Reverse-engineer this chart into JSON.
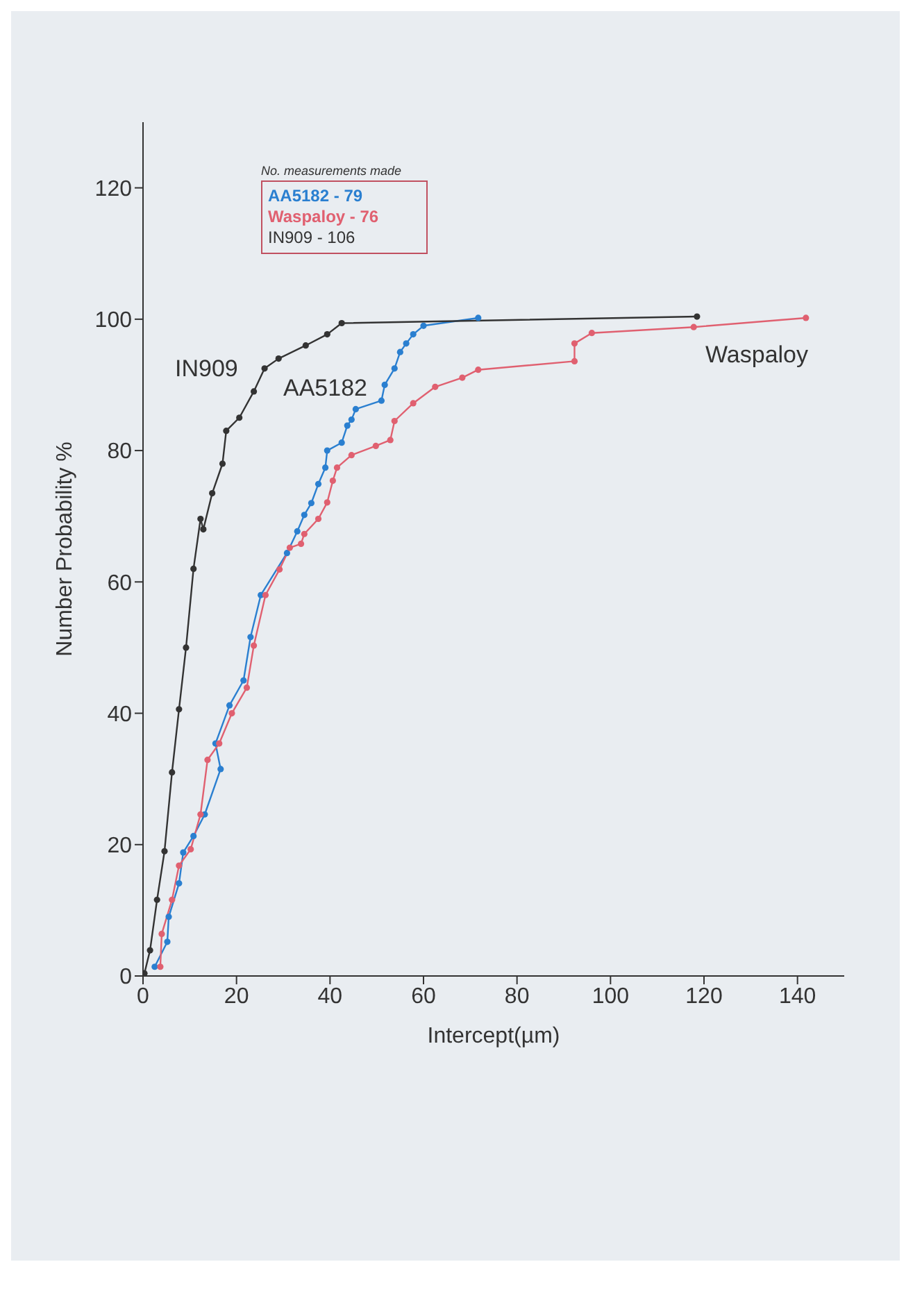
{
  "chart_data": {
    "type": "line",
    "xlabel": "Intercept(µm)",
    "ylabel": "Number Probability  %",
    "xlim": [
      0,
      150
    ],
    "xticks": [
      0,
      20,
      40,
      60,
      80,
      100,
      120,
      140
    ],
    "ylim": [
      0,
      130
    ],
    "yticks": [
      0,
      20,
      40,
      60,
      80,
      100,
      120
    ],
    "legend": "top left",
    "legend_title": "No. measurements made",
    "marker": "circle",
    "line_style": "solid",
    "series": [
      {
        "name": "AA5182 - 79",
        "color": "#2a7fd0",
        "x": [
          2.5,
          5.2,
          5.5,
          7.7,
          8.6,
          10.8,
          13.2,
          16.6,
          15.5,
          18.5,
          21.5,
          23,
          25.2,
          30.8,
          33,
          34.5,
          36,
          37.5,
          39,
          39.4,
          42.5,
          43.7,
          44.6,
          45.5,
          51,
          51.7,
          53.8,
          55,
          56.3,
          57.8,
          60,
          71.7
        ],
        "values": [
          1.4,
          5.2,
          9,
          14.1,
          18.8,
          21.3,
          24.6,
          31.5,
          35.4,
          41.2,
          45,
          51.6,
          58,
          64.4,
          67.7,
          70.2,
          72,
          74.9,
          77.4,
          80,
          81.2,
          83.8,
          84.7,
          86.3,
          87.6,
          90,
          92.5,
          95,
          96.3,
          97.7,
          99,
          100.2
        ]
      },
      {
        "name": "Waspaloy - 76",
        "color": "#e06070",
        "x": [
          3.7,
          4,
          6.2,
          7.7,
          10.2,
          12.3,
          13.8,
          16.3,
          19,
          22.2,
          23.7,
          26.2,
          29.2,
          31.4,
          33.8,
          34.5,
          37.5,
          39.4,
          40.6,
          41.5,
          44.6,
          49.8,
          52.9,
          53.8,
          57.8,
          62.5,
          68.3,
          71.7,
          92.3,
          92.3,
          96,
          117.8,
          141.8
        ],
        "values": [
          1.4,
          6.4,
          11.6,
          16.8,
          19.3,
          24.6,
          32.9,
          35.4,
          40,
          43.9,
          50.3,
          58,
          61.9,
          65.2,
          65.8,
          67.3,
          69.6,
          72.1,
          75.4,
          77.4,
          79.3,
          80.7,
          81.6,
          84.5,
          87.2,
          89.7,
          91.1,
          92.3,
          93.6,
          96.3,
          97.9,
          98.8,
          100.2
        ]
      },
      {
        "name": "IN909 - 106",
        "color": "#333333",
        "x": [
          0.3,
          1.5,
          3,
          4.6,
          6.2,
          7.7,
          9.2,
          10.8,
          12.3,
          12.9,
          14.8,
          17,
          17.8,
          20.6,
          23.7,
          26,
          29,
          34.8,
          39.4,
          42.5,
          118.5
        ],
        "values": [
          0.4,
          3.9,
          11.6,
          19,
          31,
          40.6,
          50,
          62,
          69.6,
          68,
          73.5,
          78,
          83,
          85,
          89,
          92.5,
          94,
          96,
          97.7,
          99.4,
          100.4
        ]
      }
    ],
    "annotations": [
      "IN909",
      "AA5182",
      "Waspaloy"
    ]
  }
}
